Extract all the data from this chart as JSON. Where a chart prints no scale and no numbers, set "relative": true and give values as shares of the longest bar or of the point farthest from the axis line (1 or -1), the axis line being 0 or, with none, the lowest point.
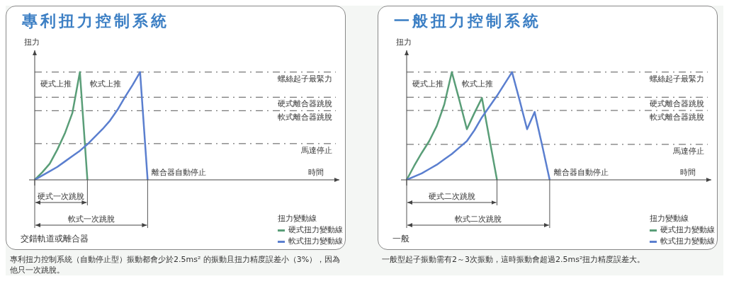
{
  "chart_data": [
    {
      "type": "line",
      "title": "專利扭力控制系統",
      "xlabel": "時間",
      "ylabel": "扭力",
      "relative": true,
      "legend": "bottom right",
      "legend_title": "扭力變動線",
      "line_style": "solid",
      "marker": "none",
      "categories": [
        null,
        null,
        null,
        null,
        null,
        null,
        null,
        null,
        null,
        null,
        null,
        null,
        null,
        null,
        null,
        null,
        null,
        null,
        null,
        null,
        null,
        null,
        null,
        null,
        null,
        null,
        null,
        null,
        null,
        null,
        null,
        null,
        null,
        null,
        null,
        null,
        null,
        null,
        null,
        null,
        null
      ],
      "series": [
        {
          "name": "硬式扭力變動線",
          "color": "#5a9e78",
          "values": [
            0,
            0.07,
            0.15,
            0.28,
            0.43,
            0.62,
            1,
            0,
            null,
            null,
            null,
            null,
            null,
            null,
            null,
            null,
            null,
            null,
            null,
            null,
            null,
            null,
            null,
            null,
            null,
            null,
            null,
            null,
            null,
            null,
            null,
            null,
            null,
            null,
            null,
            null,
            null,
            null,
            null,
            null,
            null
          ]
        },
        {
          "name": "軟式扭力變動線",
          "color": "#5b7fcf",
          "values": [
            0,
            0.04,
            0.08,
            0.12,
            0.17,
            0.22,
            0.27,
            0.33,
            0.4,
            0.47,
            0.55,
            0.65,
            0.77,
            0.88,
            1,
            0,
            null,
            null,
            null,
            null,
            null,
            null,
            null,
            null,
            null,
            null,
            null,
            null,
            null,
            null,
            null,
            null,
            null,
            null,
            null,
            null,
            null,
            null,
            null,
            null,
            null
          ]
        }
      ],
      "ref_lines": [
        {
          "axis": "y",
          "value": 1,
          "label": "螺絲起子最緊力",
          "color": "#555555",
          "line_style": "dashed"
        },
        {
          "axis": "y",
          "value": 0.767,
          "label": "硬式離合器跳脫",
          "color": "#555555",
          "line_style": "dashed"
        },
        {
          "axis": "y",
          "value": 0.642,
          "label": "軟式離合器跳脫",
          "color": "#555555",
          "line_style": "dashed"
        },
        {
          "axis": "y",
          "value": 0.336,
          "label": "馬達停止",
          "color": "#555555",
          "line_style": "dashed"
        }
      ],
      "annotations": [
        "硬式上推",
        "軟式上推",
        "離合器自動停止",
        "硬式一次跳脫",
        "軟式一次跳脫",
        "交錯軌道或離合器",
        "專利扭力控制系統（自動停止型）振動都會少於2.5ms² 的振動且扭力精度誤差小（3%），因為他只一次跳脫。"
      ]
    },
    {
      "type": "line",
      "title": "一般扭力控制系統",
      "xlabel": "時間",
      "ylabel": "扭力",
      "relative": true,
      "legend": "bottom right",
      "legend_title": "扭力變動線",
      "line_style": "solid",
      "marker": "none",
      "categories": [
        null,
        null,
        null,
        null,
        null,
        null,
        null,
        null,
        null,
        null,
        null,
        null,
        null,
        null,
        null,
        null,
        null,
        null,
        null,
        null,
        null,
        null,
        null,
        null,
        null,
        null,
        null,
        null,
        null,
        null,
        null,
        null,
        null,
        null,
        null,
        null,
        null,
        null,
        null,
        null,
        null
      ],
      "series": [
        {
          "name": "硬式扭力變動線",
          "color": "#5a9e78",
          "values": [
            0,
            0.13,
            0.25,
            0.36,
            0.5,
            0.7,
            1,
            0.74,
            0.47,
            0.62,
            0.76,
            0.38,
            0,
            null,
            null,
            null,
            null,
            null,
            null,
            null,
            null,
            null,
            null,
            null,
            null,
            null,
            null,
            null,
            null,
            null,
            null,
            null,
            null,
            null,
            null,
            null,
            null,
            null,
            null,
            null,
            null
          ]
        },
        {
          "name": "軟式扭力變動線",
          "color": "#5b7fcf",
          "values": [
            0,
            0.03,
            0.06,
            0.1,
            0.14,
            0.19,
            0.24,
            0.3,
            0.36,
            0.46,
            0.58,
            0.68,
            0.78,
            0.89,
            1,
            0.74,
            0.47,
            0.63,
            0.32,
            0,
            null,
            null,
            null,
            null,
            null,
            null,
            null,
            null,
            null,
            null,
            null,
            null,
            null,
            null,
            null,
            null,
            null,
            null,
            null,
            null,
            null
          ]
        }
      ],
      "ref_lines": [
        {
          "axis": "y",
          "value": 1,
          "label": "螺絲起子最緊力",
          "color": "#555555",
          "line_style": "dashed"
        },
        {
          "axis": "y",
          "value": 0.767,
          "label": "硬式離合器跳脫",
          "color": "#555555",
          "line_style": "dashed"
        },
        {
          "axis": "y",
          "value": 0.644,
          "label": "軟式離合器跳脫",
          "color": "#555555",
          "line_style": "dashed"
        },
        {
          "axis": "y",
          "value": 0.329,
          "label": "馬達停止",
          "color": "#555555",
          "line_style": "dashed"
        }
      ],
      "annotations": [
        "硬式上推",
        "軟式上推",
        "離合器自動停止",
        "硬式二次跳脫",
        "軟式二次跳脫",
        "一般",
        "一般型起子振動需有2～3次振動，這時振動會超過2.5ms²扭力精度誤差大。"
      ]
    }
  ]
}
